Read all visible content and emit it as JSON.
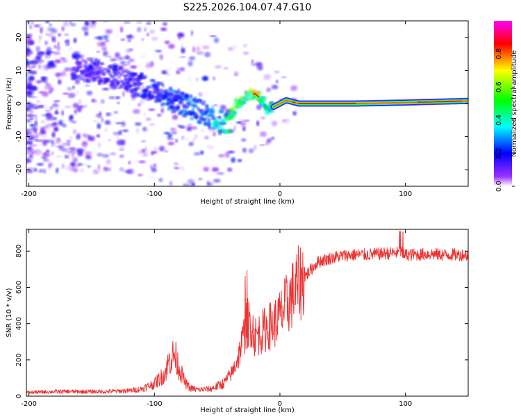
{
  "title": "S225.2026.104.07.47.G10",
  "chart_data": [
    {
      "type": "heatmap",
      "name": "spectrogram",
      "xlabel": "Height of straight line (km)",
      "ylabel": "Frequency (Hz)",
      "xlim": [
        -202,
        150
      ],
      "ylim": [
        -25,
        25
      ],
      "xticks": [
        -200,
        -100,
        0,
        100
      ],
      "yticks": [
        -20,
        -10,
        0,
        10,
        20
      ],
      "colorbar": {
        "label": "Normalized spectral amplitude",
        "range": [
          0,
          1
        ],
        "ticks": [
          "0.0",
          "0.2",
          "0.4",
          "0.6",
          "0.8"
        ],
        "colors": [
          "#ffffff",
          "#9b30ff",
          "#0000ff",
          "#00ffff",
          "#00ff00",
          "#ffff00",
          "#ff0000",
          "#ff00ff"
        ]
      },
      "ridge": {
        "description": "Frequency of the dominant spectral peak vs height",
        "x": [
          -160,
          -140,
          -120,
          -100,
          -80,
          -60,
          -48,
          -40,
          -35,
          -30,
          -25,
          -20,
          -15,
          -10,
          -5,
          0,
          5,
          10,
          15,
          30,
          60,
          100,
          150
        ],
        "freq": [
          11,
          9,
          7,
          4,
          0,
          -3,
          -6,
          -5,
          0,
          1,
          2.5,
          3,
          1.5,
          -1.5,
          -1,
          0,
          1,
          0.5,
          0,
          0,
          0,
          0.3,
          0.8
        ],
        "amplitude": [
          0.15,
          0.15,
          0.18,
          0.2,
          0.25,
          0.25,
          0.35,
          0.45,
          0.55,
          0.55,
          0.6,
          0.75,
          0.5,
          0.4,
          0.5,
          0.55,
          0.6,
          0.7,
          0.8,
          0.85,
          0.85,
          0.8,
          0.75
        ]
      }
    },
    {
      "type": "line",
      "name": "snr",
      "xlabel": "Height of straight line (km)",
      "ylabel": "SNR (10 * v/v)",
      "xlim": [
        -202,
        150
      ],
      "ylim": [
        0,
        920
      ],
      "xticks": [
        -200,
        -100,
        0,
        100
      ],
      "yticks": [
        0,
        200,
        400,
        600,
        800
      ],
      "series": [
        {
          "name": "SNR",
          "color": "#ee3333",
          "x": [
            -202,
            -180,
            -160,
            -140,
            -120,
            -110,
            -100,
            -92,
            -88,
            -84,
            -80,
            -76,
            -72,
            -65,
            -55,
            -45,
            -38,
            -33,
            -30,
            -27,
            -24,
            -22,
            -20,
            -15,
            -10,
            -5,
            0,
            5,
            10,
            15,
            20,
            25,
            30,
            40,
            50,
            60,
            70,
            80,
            90,
            97,
            100,
            110,
            120,
            130,
            150
          ],
          "y": [
            20,
            25,
            25,
            25,
            30,
            40,
            70,
            120,
            200,
            230,
            150,
            80,
            45,
            35,
            40,
            70,
            130,
            220,
            300,
            380,
            430,
            380,
            330,
            350,
            380,
            400,
            440,
            500,
            560,
            620,
            660,
            700,
            740,
            760,
            775,
            780,
            780,
            785,
            790,
            790,
            780,
            780,
            785,
            780,
            780
          ]
        }
      ]
    }
  ]
}
